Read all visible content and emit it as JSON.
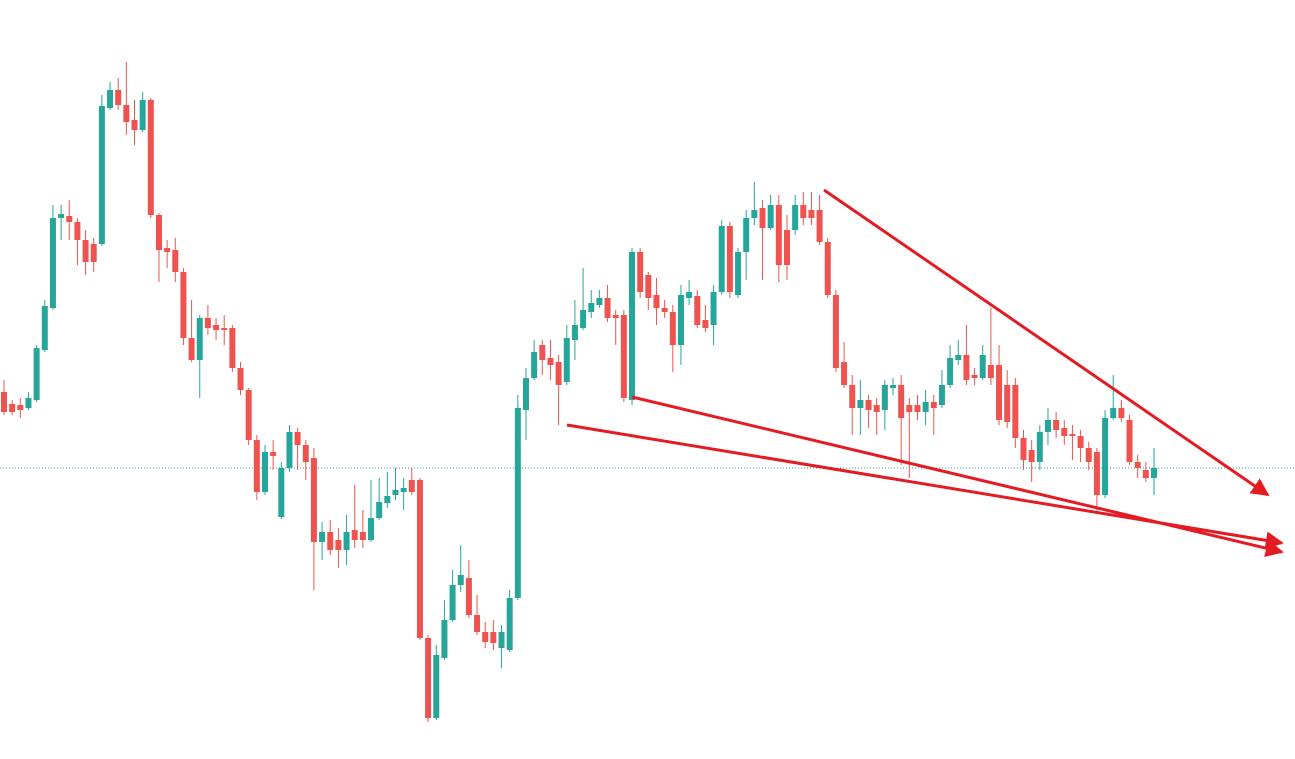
{
  "chart_data": {
    "type": "candlestick",
    "up_color": "#26a69a",
    "down_color": "#ef5350",
    "ylim": [
      0,
      759
    ],
    "open": [
      367,
      355,
      354,
      351,
      359,
      409,
      451,
      541,
      543,
      537,
      519,
      515,
      515,
      651,
      669,
      654,
      639,
      629,
      659,
      544,
      511,
      509,
      487,
      421,
      399,
      441,
      434,
      431,
      431,
      391,
      369,
      319,
      267,
      307,
      242,
      291,
      327,
      314,
      301,
      217,
      227,
      219,
      209,
      229,
      227,
      219,
      241,
      256,
      264,
      267,
      279,
      279,
      121,
      41,
      101,
      139,
      174,
      181,
      144,
      127,
      127,
      111,
      109,
      161,
      349,
      381,
      414,
      401,
      397,
      377,
      419,
      431,
      447,
      454,
      461,
      444,
      444,
      359,
      507,
      484,
      464,
      451,
      447,
      414,
      461,
      463,
      439,
      434,
      467,
      533,
      464,
      507,
      541,
      551,
      531,
      554,
      529,
      529,
      554,
      549,
      549,
      517,
      464,
      397,
      374,
      351,
      359,
      354,
      349,
      371,
      374,
      354,
      354,
      347,
      357,
      354,
      374,
      399,
      404,
      384,
      381,
      394,
      394,
      374,
      374,
      321,
      309,
      297,
      327,
      339,
      331,
      325,
      323,
      311,
      307,
      264,
      341,
      351,
      339,
      297,
      289,
      281
    ],
    "high": [
      379,
      359,
      361,
      367,
      414,
      459,
      554,
      554,
      559,
      541,
      529,
      521,
      664,
      677,
      681,
      697,
      659,
      667,
      661,
      546,
      519,
      521,
      491,
      459,
      444,
      454,
      441,
      444,
      434,
      397,
      371,
      324,
      314,
      319,
      297,
      334,
      331,
      319,
      311,
      237,
      239,
      231,
      244,
      274,
      249,
      279,
      281,
      287,
      291,
      281,
      291,
      281,
      124,
      114,
      159,
      189,
      214,
      199,
      164,
      137,
      139,
      134,
      169,
      364,
      391,
      419,
      419,
      419,
      404,
      434,
      459,
      491,
      469,
      469,
      474,
      449,
      449,
      511,
      511,
      487,
      481,
      459,
      454,
      474,
      479,
      469,
      454,
      474,
      539,
      537,
      511,
      549,
      577,
      559,
      564,
      564,
      544,
      564,
      567,
      567,
      564,
      521,
      469,
      417,
      384,
      379,
      364,
      361,
      379,
      381,
      384,
      361,
      364,
      369,
      364,
      389,
      414,
      419,
      434,
      391,
      414,
      451,
      414,
      389,
      381,
      329,
      319,
      334,
      351,
      347,
      339,
      334,
      329,
      317,
      311,
      349,
      384,
      359,
      344,
      304,
      297,
      311
    ],
    "low": [
      344,
      344,
      341,
      349,
      357,
      407,
      449,
      519,
      519,
      494,
      484,
      487,
      513,
      649,
      649,
      624,
      614,
      627,
      541,
      477,
      491,
      477,
      414,
      397,
      361,
      424,
      419,
      414,
      387,
      364,
      314,
      259,
      264,
      289,
      240,
      287,
      289,
      279,
      169,
      199,
      204,
      191,
      194,
      211,
      211,
      217,
      239,
      251,
      259,
      249,
      264,
      119,
      37,
      39,
      99,
      137,
      167,
      141,
      124,
      111,
      109,
      91,
      107,
      159,
      319,
      379,
      384,
      379,
      334,
      374,
      399,
      429,
      441,
      451,
      437,
      414,
      357,
      354,
      461,
      449,
      434,
      441,
      387,
      394,
      454,
      431,
      427,
      414,
      464,
      461,
      461,
      479,
      534,
      479,
      529,
      477,
      479,
      524,
      534,
      534,
      514,
      461,
      387,
      371,
      324,
      324,
      331,
      324,
      329,
      364,
      294,
      281,
      339,
      334,
      324,
      351,
      371,
      394,
      374,
      374,
      379,
      374,
      334,
      331,
      311,
      289,
      277,
      289,
      314,
      321,
      314,
      299,
      297,
      289,
      249,
      261,
      339,
      337,
      294,
      281,
      277,
      264
    ],
    "close": [
      347,
      347,
      349,
      361,
      411,
      453,
      541,
      545,
      537,
      519,
      497,
      497,
      653,
      669,
      654,
      637,
      629,
      659,
      544,
      509,
      507,
      487,
      421,
      399,
      441,
      431,
      429,
      429,
      391,
      369,
      319,
      267,
      307,
      303,
      291,
      327,
      314,
      297,
      217,
      227,
      209,
      209,
      227,
      219,
      219,
      241,
      257,
      263,
      269,
      271,
      267,
      121,
      41,
      104,
      139,
      174,
      184,
      144,
      127,
      117,
      116,
      127,
      161,
      351,
      381,
      407,
      399,
      394,
      374,
      421,
      434,
      449,
      456,
      461,
      441,
      441,
      361,
      507,
      467,
      461,
      451,
      447,
      414,
      464,
      467,
      434,
      431,
      467,
      533,
      467,
      507,
      541,
      549,
      531,
      554,
      494,
      494,
      554,
      541,
      541,
      517,
      464,
      391,
      374,
      351,
      359,
      349,
      347,
      374,
      374,
      341,
      347,
      347,
      357,
      351,
      374,
      401,
      404,
      379,
      381,
      404,
      381,
      339,
      337,
      321,
      299,
      297,
      327,
      339,
      329,
      323,
      323,
      311,
      297,
      264,
      341,
      351,
      341,
      297,
      291,
      281,
      291
    ]
  }
}
